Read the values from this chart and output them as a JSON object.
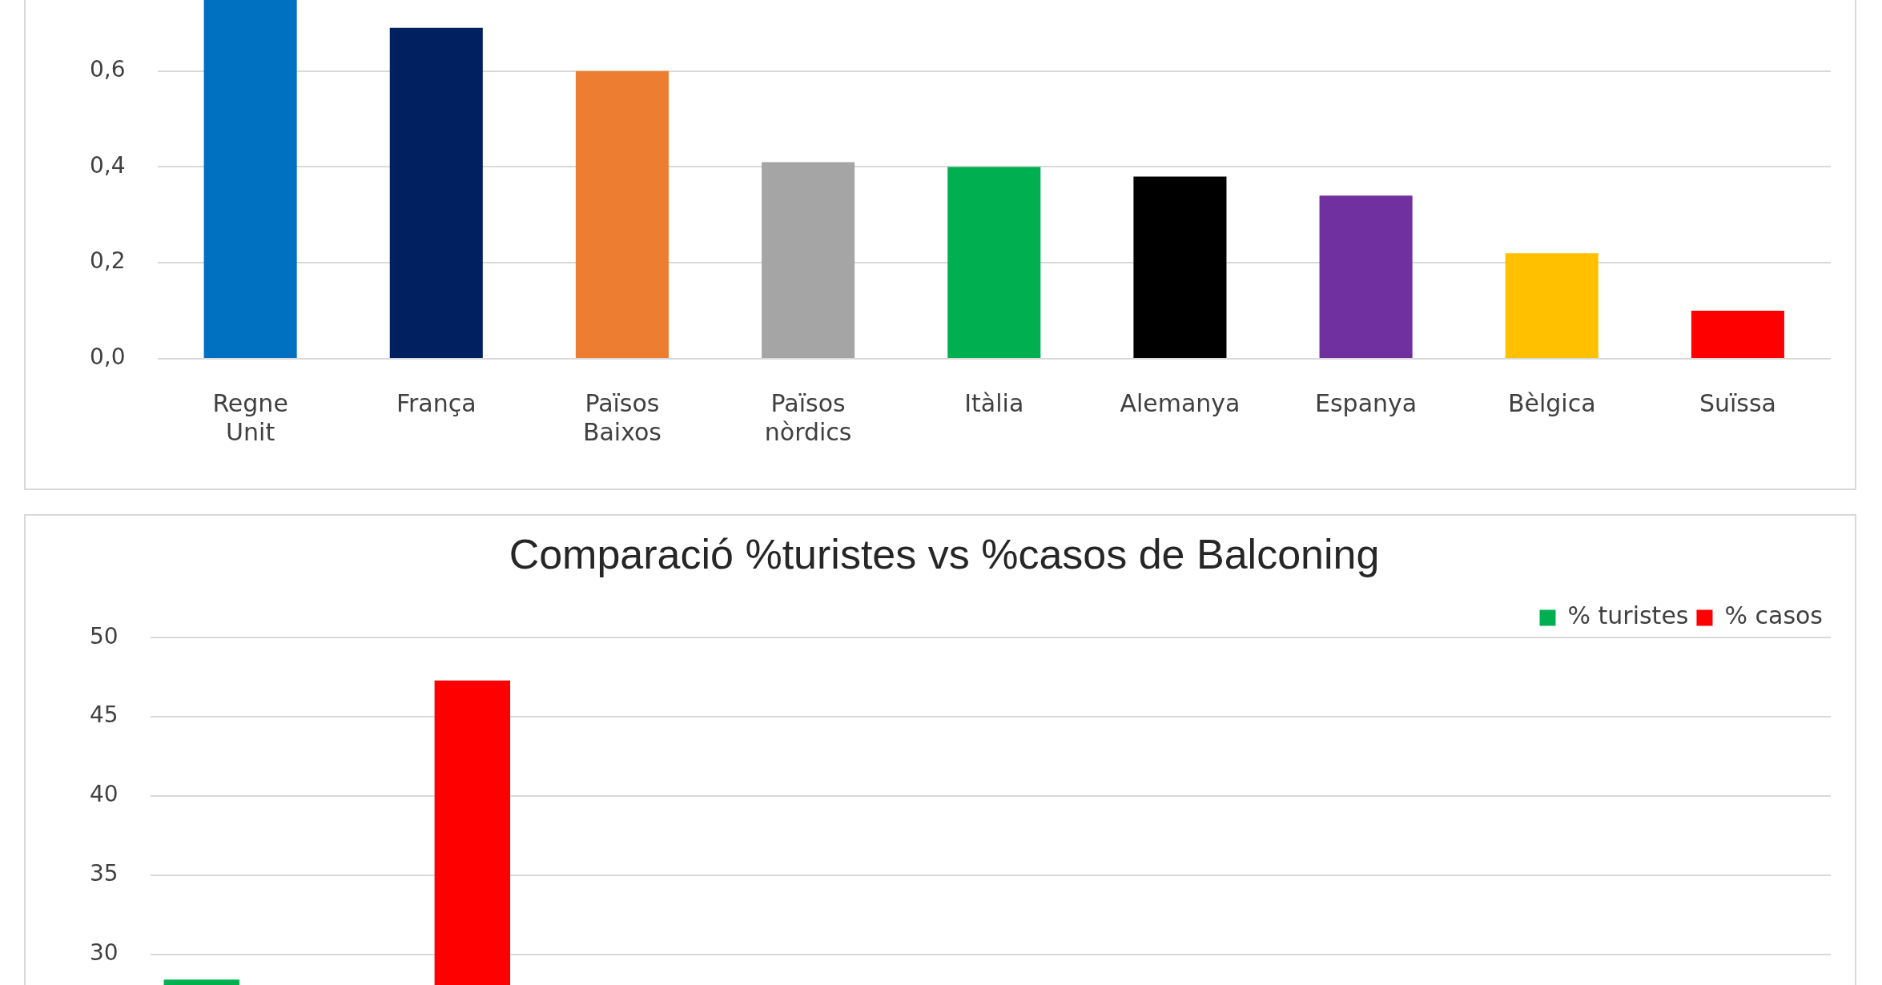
{
  "chart_data": [
    {
      "type": "bar",
      "categories": [
        "Regne Unit",
        "França",
        "Països Baixos",
        "Països nòrdics",
        "Itàlia",
        "Alemanya",
        "Espanya",
        "Bèlgica",
        "Suïssa"
      ],
      "values": [
        0.75,
        0.69,
        0.6,
        0.41,
        0.4,
        0.38,
        0.34,
        0.22,
        0.1
      ],
      "colors": [
        "#0070c0",
        "#002060",
        "#ed7d31",
        "#a5a5a5",
        "#00b050",
        "#000000",
        "#7030a0",
        "#ffc000",
        "#ff0000"
      ],
      "ylim": [
        0,
        0.75
      ],
      "yticks": [
        {
          "value": 0,
          "label": "0,0"
        },
        {
          "value": 0.2,
          "label": "0,2"
        },
        {
          "value": 0.4,
          "label": "0,4"
        },
        {
          "value": 0.6,
          "label": "0,6"
        }
      ],
      "grid": "y",
      "legend": false
    },
    {
      "type": "bar",
      "title": "Comparació %turistes vs %casos de Balconing",
      "categories": [
        null,
        null,
        null,
        null,
        null,
        null,
        null,
        null,
        null
      ],
      "series": [
        {
          "name": "% turistes",
          "color": "#00b050",
          "values": [
            28.4,
            null,
            null,
            null,
            null,
            null,
            null,
            null,
            null
          ]
        },
        {
          "name": "% casos",
          "color": "#ff0000",
          "values": [
            null,
            47.3,
            null,
            null,
            null,
            null,
            null,
            null,
            null
          ]
        }
      ],
      "ylim": [
        28,
        50
      ],
      "yticks": [
        30,
        35,
        40,
        45,
        50
      ],
      "grid": "y",
      "legend": "top right"
    }
  ]
}
